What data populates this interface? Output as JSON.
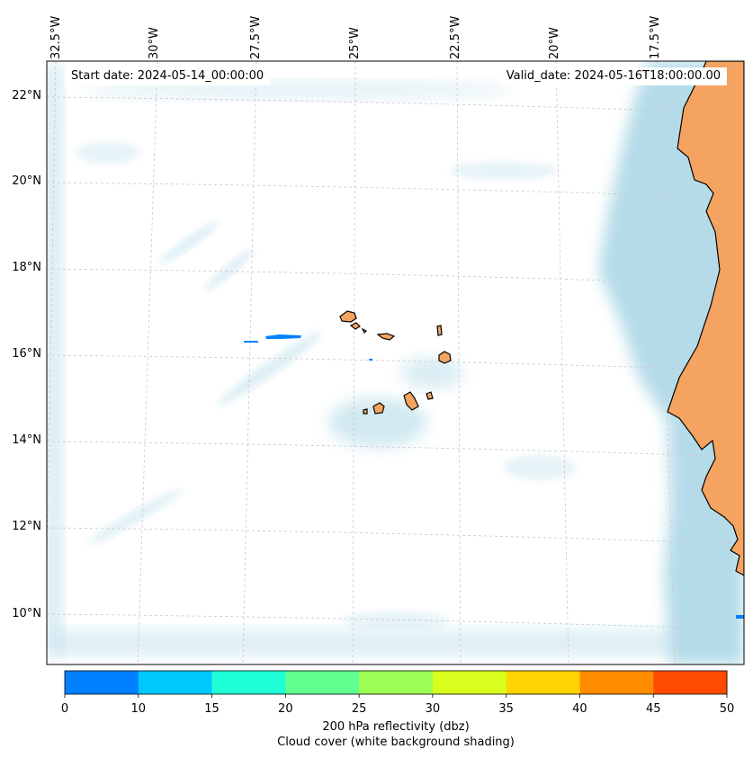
{
  "map": {
    "start_date": "Start date: 2024-05-14_00:00:00",
    "valid_date": "Valid_date: 2024-05-16T18:00:00.00",
    "lon_labels": [
      "32.5°W",
      "30°W",
      "27.5°W",
      "25°W",
      "22.5°W",
      "20°W",
      "17.5°W"
    ],
    "lat_labels": [
      "22°N",
      "20°N",
      "18°N",
      "16°N",
      "14°N",
      "12°N",
      "10°N"
    ],
    "colors": {
      "land": "#f4a460",
      "cloud": "#add8e6",
      "coast": "#000000",
      "gridline": "#c8c8c8",
      "reflectivity_patch": "#0080ff"
    }
  },
  "colorbar": {
    "ticks": [
      "0",
      "10",
      "15",
      "20",
      "25",
      "30",
      "35",
      "40",
      "45",
      "50"
    ],
    "colors": [
      "#0080ff",
      "#00c8ff",
      "#1effd8",
      "#60ff90",
      "#9bff55",
      "#d8ff1e",
      "#ffd400",
      "#ff8c00",
      "#ff4c00"
    ],
    "label_line1": "200 hPa reflectivity (dbz)",
    "label_line2": "Cloud cover (white background shading)"
  }
}
